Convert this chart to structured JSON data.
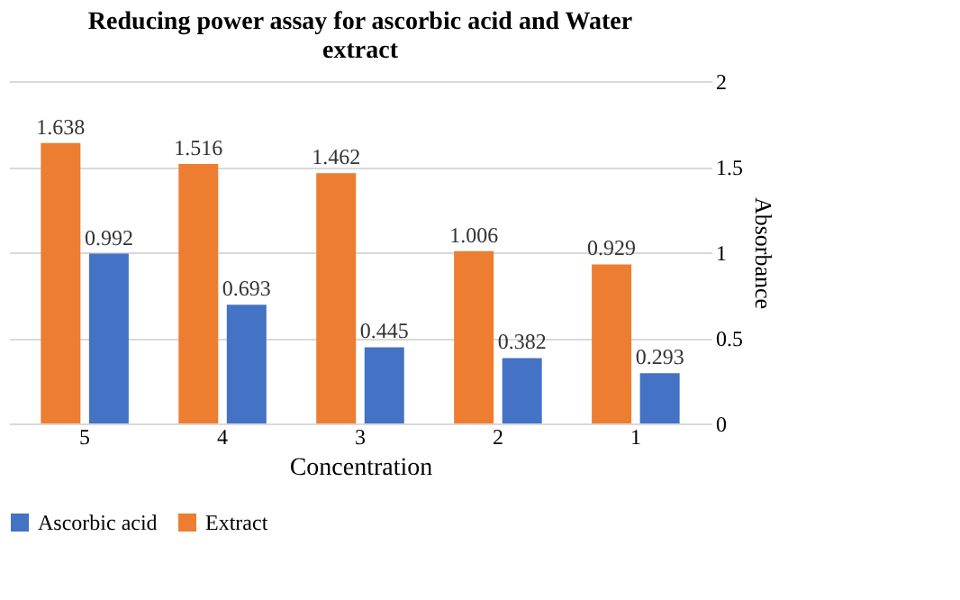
{
  "chart_data": {
    "type": "bar",
    "title": "Reducing power assay for ascorbic acid and Water extract",
    "xlabel": "Concentration",
    "ylabel": "Absorbance",
    "categories": [
      "5",
      "4",
      "3",
      "2",
      "1"
    ],
    "series": [
      {
        "name": "Ascorbic acid",
        "color": "#4472c4",
        "values": [
          0.992,
          0.693,
          0.445,
          0.382,
          0.293
        ]
      },
      {
        "name": "Extract",
        "color": "#ed7d31",
        "values": [
          1.638,
          1.516,
          1.462,
          1.006,
          0.929
        ]
      }
    ],
    "ylim": [
      0,
      2
    ],
    "yticks": [
      0,
      0.5,
      1,
      1.5,
      2
    ],
    "grid": "y",
    "legend": "bottom",
    "data_labels": true
  }
}
